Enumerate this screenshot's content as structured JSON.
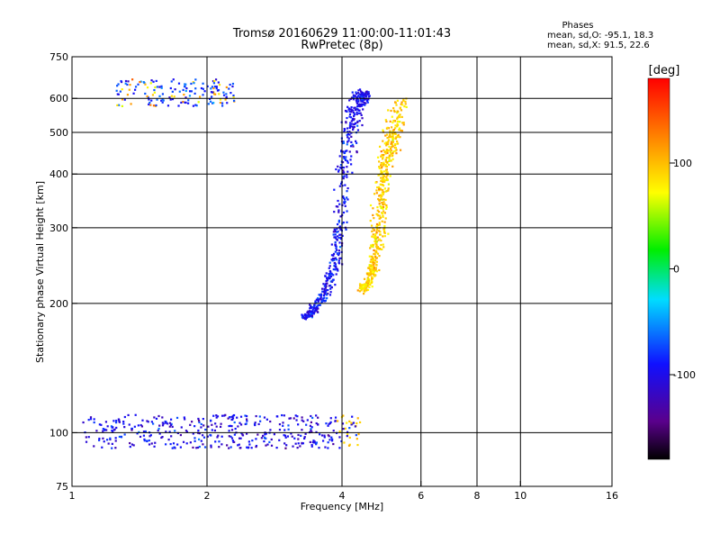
{
  "chart_data": {
    "type": "scatter",
    "title": "Tromsø 20160629 11:00:00-11:01:43",
    "subtitle": "RwPretec (8p)",
    "xlabel": "Frequency [MHz]",
    "ylabel": "Stationary phase Virtual Height [km]",
    "x_scale": "log",
    "y_scale": "log",
    "xlim": [
      1,
      16
    ],
    "ylim": [
      75,
      750
    ],
    "x_ticks": [
      1,
      2,
      4,
      6,
      8,
      10,
      16
    ],
    "x_tick_labels": [
      "1",
      "2",
      "4",
      "6",
      "8",
      "10",
      "16"
    ],
    "y_ticks": [
      75,
      100,
      200,
      300,
      400,
      500,
      600,
      750
    ],
    "y_tick_labels": [
      "75",
      "100",
      "200",
      "300",
      "400",
      "500",
      "600",
      "750"
    ],
    "grid_x": [
      2,
      4,
      6,
      8,
      10
    ],
    "grid_y": [
      100,
      200,
      300,
      400,
      500,
      600
    ],
    "grid": true,
    "legend": {
      "header": "Phases",
      "lines": [
        "mean, sd,O: -95.1, 18.3",
        "mean, sd,X:  91.5, 22.6"
      ],
      "placement": "top-right"
    },
    "colorbar": {
      "label": "[deg]",
      "range": [
        -180,
        180
      ],
      "ticks": [
        100,
        0,
        -100
      ],
      "tick_labels": [
        "100",
        "0",
        "-100"
      ],
      "colormap": "rainbow (black-purple-blue-cyan-green-yellow-orange-red)"
    },
    "series": [
      {
        "layer": "E-region trace",
        "x_range": [
          1.05,
          4.4
        ],
        "height_range": [
          92,
          110
        ],
        "phase": -100
      },
      {
        "layer": "F-region O-mode trace",
        "points": [
          [
            3.3,
            185
          ],
          [
            3.5,
            195
          ],
          [
            3.7,
            215
          ],
          [
            3.85,
            250
          ],
          [
            3.95,
            300
          ],
          [
            4.05,
            400
          ],
          [
            4.15,
            500
          ],
          [
            4.25,
            560
          ],
          [
            4.4,
            600
          ],
          [
            4.5,
            620
          ]
        ],
        "phase": -95
      },
      {
        "layer": "F-region X-mode trace",
        "points": [
          [
            4.4,
            215
          ],
          [
            4.6,
            225
          ],
          [
            4.75,
            255
          ],
          [
            4.85,
            300
          ],
          [
            4.9,
            380
          ],
          [
            5.05,
            440
          ],
          [
            5.2,
            500
          ],
          [
            5.35,
            600
          ]
        ],
        "phase": 92
      },
      {
        "layer": "Multiple echo cluster",
        "x_range": [
          1.25,
          2.3
        ],
        "height_range": [
          575,
          665
        ],
        "phase": -80
      }
    ]
  }
}
